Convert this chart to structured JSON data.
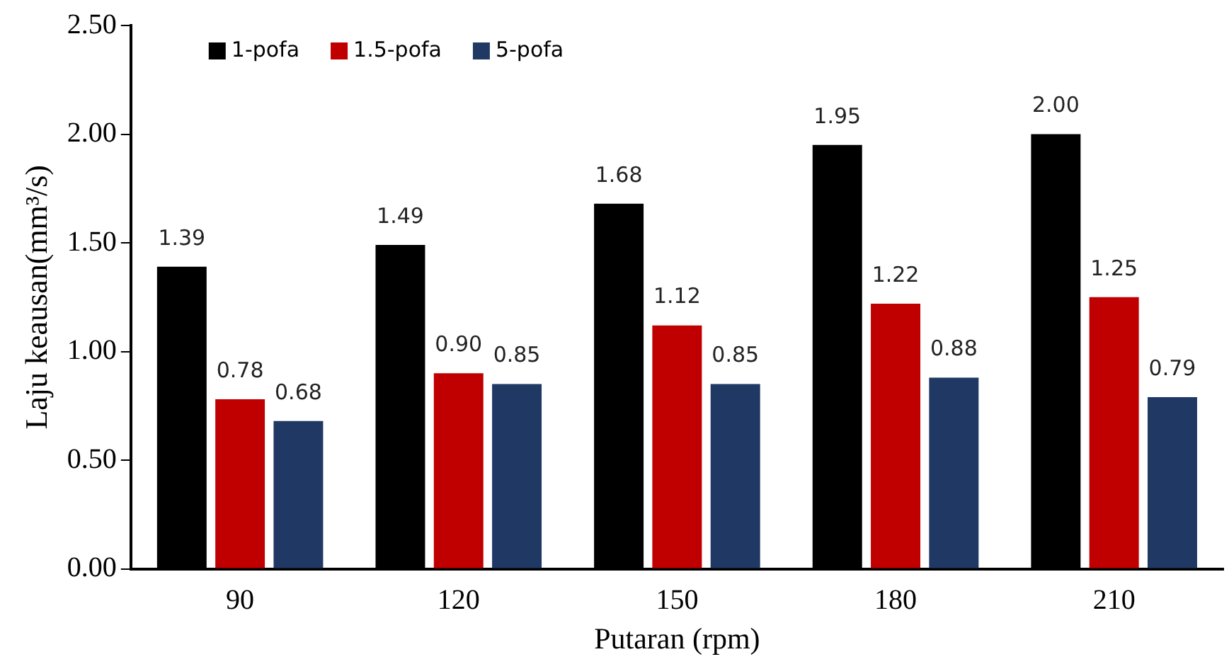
{
  "chart_data": {
    "type": "bar",
    "xlabel": "Putaran (rpm)",
    "ylabel": "Laju keausan(mm³/s)",
    "categories": [
      "90",
      "120",
      "150",
      "180",
      "210"
    ],
    "series": [
      {
        "name": "1-pofa",
        "color": "#000000",
        "values": [
          1.39,
          1.49,
          1.68,
          1.95,
          2.0
        ],
        "value_labels": [
          "1.39",
          "1.49",
          "1.68",
          "1.95",
          "2.00"
        ]
      },
      {
        "name": "1.5-pofa",
        "color": "#c00000",
        "values": [
          0.78,
          0.9,
          1.12,
          1.22,
          1.25
        ],
        "value_labels": [
          "0.78",
          "0.90",
          "1.12",
          "1.22",
          "1.25"
        ]
      },
      {
        "name": "5-pofa",
        "color": "#1f3864",
        "values": [
          0.68,
          0.85,
          0.85,
          0.88,
          0.79
        ],
        "value_labels": [
          "0.68",
          "0.85",
          "0.85",
          "0.88",
          "0.79"
        ]
      }
    ],
    "ylim": [
      0,
      2.5
    ],
    "yticks": [
      {
        "value": 0,
        "label": "0.00"
      },
      {
        "value": 0.5,
        "label": "0.50"
      },
      {
        "value": 1,
        "label": "1.00"
      },
      {
        "value": 1.5,
        "label": "1.50"
      },
      {
        "value": 2,
        "label": "2.00"
      },
      {
        "value": 2.5,
        "label": "2.50"
      }
    ],
    "grid": false,
    "legend": "top left"
  }
}
